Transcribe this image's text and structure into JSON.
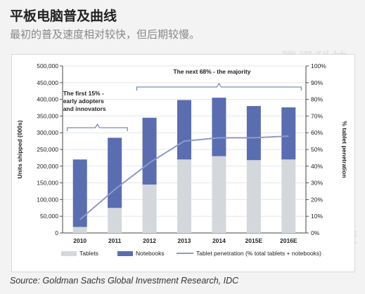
{
  "header": {
    "title": "平板电脑普及曲线",
    "subtitle": "最初的普及速度相对较快，但后期较慢。"
  },
  "watermark": {
    "text": "腾讯科技"
  },
  "source": "Source: Goldman Sachs Global Investment Research, IDC",
  "colors": {
    "tablets": "#d4d8dc",
    "notebooks": "#5a6db0",
    "penetration": "#8e9ac9",
    "annotation": "#5a6db0"
  },
  "chart_data": {
    "type": "bar",
    "stacked": true,
    "categories": [
      "2010",
      "2011",
      "2012",
      "2013",
      "2014",
      "2015E",
      "2016E"
    ],
    "series": [
      {
        "name": "Tablets",
        "values": [
          18000,
          75000,
          145000,
          220000,
          230000,
          218000,
          220000
        ]
      },
      {
        "name": "Notebooks",
        "values": [
          202000,
          210000,
          200000,
          178000,
          175000,
          162000,
          156000
        ]
      }
    ],
    "line_series": {
      "name": "Tablet penetration (% total tablets + notebooks)",
      "axis": "right",
      "values": [
        8,
        26,
        42,
        55,
        57,
        57,
        58
      ]
    },
    "ylabel": "Units shipped (000s)",
    "y2label": "% tablet penetration",
    "ylim": [
      0,
      500000
    ],
    "y2lim": [
      0,
      100
    ],
    "yticks": [
      "0",
      "50,000",
      "100,000",
      "150,000",
      "200,000",
      "250,000",
      "300,000",
      "350,000",
      "400,000",
      "450,000",
      "500,000"
    ],
    "y2ticks": [
      "0%",
      "10%",
      "20%",
      "30%",
      "40%",
      "50%",
      "60%",
      "70%",
      "80%",
      "90%",
      "100%"
    ],
    "annotations": [
      {
        "text": [
          "The first 15% -",
          "early adopters",
          "and innovators"
        ],
        "from": "2010",
        "to": "2011"
      },
      {
        "text": [
          "The next 68% - the majority"
        ],
        "from": "2012",
        "to": "2016E"
      }
    ],
    "legend": [
      "Tablets",
      "Notebooks",
      "Tablet penetration (% total tablets + notebooks)"
    ],
    "legend_position": "bottom"
  }
}
